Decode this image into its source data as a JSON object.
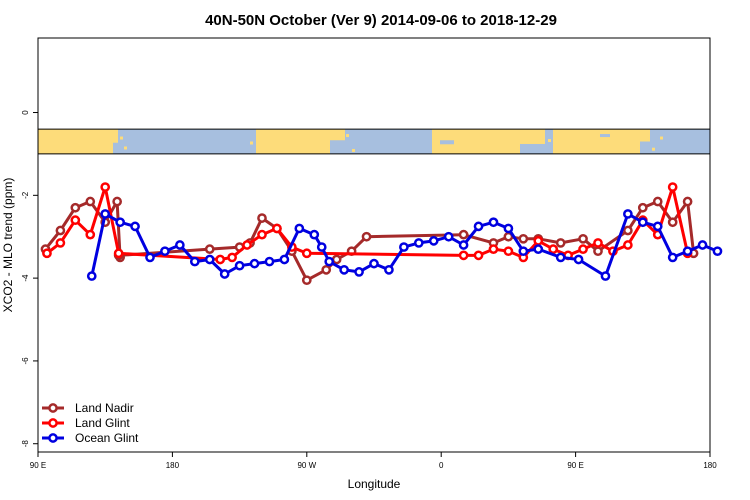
{
  "chart_data": {
    "type": "line",
    "title": "40N-50N October (Ver 9)   2014-09-06 to 2018-12-29",
    "xlabel": "Longitude",
    "ylabel": "XCO2 - MLO trend (ppm)",
    "xlim": [
      90,
      540
    ],
    "ylim": [
      -8.2,
      1.8
    ],
    "x_ticks": [
      90,
      180,
      270,
      360,
      450,
      540
    ],
    "x_tick_labels": [
      "90 E",
      "180",
      "90 W",
      "0",
      "90 E",
      "180"
    ],
    "y_ticks": [
      0,
      -2,
      -4,
      -6,
      -8
    ],
    "y_tick_labels": [
      "0",
      "-2",
      "-4",
      "-6",
      "-8"
    ],
    "grid": false,
    "legend_position": "bottom-left",
    "map_strip": {
      "y_top": -0.4,
      "y_bottom": -1.0,
      "land_color": "#fddc7a",
      "ocean_color": "#a7bfdf"
    },
    "series": [
      {
        "name": "Land Nadir",
        "color": "#a52a2a",
        "x": [
          95,
          105,
          115,
          125,
          135,
          143,
          145,
          144,
          205,
          225,
          232,
          240,
          250,
          260,
          270,
          283,
          290,
          300,
          310,
          375,
          395,
          405,
          415,
          425,
          440,
          455,
          465,
          485,
          495,
          505,
          515,
          525,
          529
        ],
        "y": [
          -3.3,
          -2.85,
          -2.3,
          -2.15,
          -2.65,
          -2.15,
          -3.5,
          -3.45,
          -3.3,
          -3.25,
          -3.15,
          -2.55,
          -2.8,
          -3.35,
          -4.05,
          -3.8,
          -3.55,
          -3.35,
          -3.0,
          -2.95,
          -3.15,
          -3.0,
          -3.05,
          -3.05,
          -3.15,
          -3.05,
          -3.35,
          -2.85,
          -2.3,
          -2.15,
          -2.65,
          -2.15,
          -3.4
        ]
      },
      {
        "name": "Land Glint",
        "color": "#ff0000",
        "x": [
          96,
          105,
          115,
          125,
          135,
          144,
          212,
          220,
          230,
          240,
          250,
          260,
          270,
          375,
          385,
          395,
          405,
          415,
          425,
          435,
          445,
          455,
          465,
          475,
          485,
          495,
          505,
          515,
          525
        ],
        "y": [
          -3.4,
          -3.15,
          -2.6,
          -2.95,
          -1.8,
          -3.4,
          -3.55,
          -3.5,
          -3.2,
          -2.95,
          -2.8,
          -3.25,
          -3.4,
          -3.45,
          -3.45,
          -3.3,
          -3.35,
          -3.5,
          -3.1,
          -3.3,
          -3.45,
          -3.3,
          -3.15,
          -3.35,
          -3.2,
          -2.6,
          -2.95,
          -1.8,
          -3.4
        ]
      },
      {
        "name": "Ocean Glint",
        "color": "#0000e0",
        "x": [
          126,
          135,
          145,
          155,
          165,
          175,
          185,
          195,
          205,
          215,
          225,
          235,
          245,
          255,
          265,
          275,
          280,
          285,
          295,
          305,
          315,
          325,
          335,
          345,
          355,
          365,
          375,
          385,
          395,
          405,
          415,
          425,
          440,
          452,
          470,
          485,
          495,
          505,
          515,
          525,
          535,
          545
        ],
        "y": [
          -3.95,
          -2.45,
          -2.65,
          -2.75,
          -3.5,
          -3.35,
          -3.2,
          -3.6,
          -3.55,
          -3.9,
          -3.7,
          -3.65,
          -3.6,
          -3.55,
          -2.8,
          -2.95,
          -3.25,
          -3.6,
          -3.8,
          -3.85,
          -3.65,
          -3.8,
          -3.25,
          -3.15,
          -3.1,
          -3.0,
          -3.2,
          -2.75,
          -2.65,
          -2.8,
          -3.35,
          -3.3,
          -3.5,
          -3.55,
          -3.95,
          -2.45,
          -2.65,
          -2.75,
          -3.5,
          -3.35,
          -3.2,
          -3.35
        ]
      }
    ]
  }
}
